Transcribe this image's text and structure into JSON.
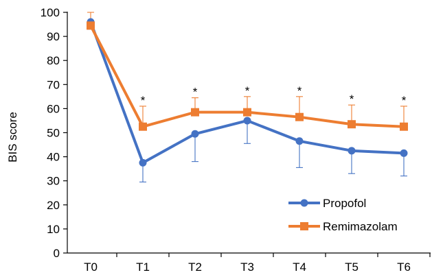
{
  "chart_data": {
    "type": "line",
    "title": "",
    "xlabel": "",
    "ylabel": "BIS score",
    "categories": [
      "T0",
      "T1",
      "T2",
      "T3",
      "T4",
      "T5",
      "T6"
    ],
    "ylim": [
      0,
      100
    ],
    "yticks": [
      0,
      10,
      20,
      30,
      40,
      50,
      60,
      70,
      80,
      90,
      100
    ],
    "grid": false,
    "legend_position": "bottom-right",
    "significance_marker": "*",
    "significant_points": [
      false,
      true,
      true,
      true,
      true,
      true,
      true
    ],
    "series": [
      {
        "name": "Propofol",
        "color": "#4472C4",
        "marker": "circle",
        "values": [
          96,
          37.5,
          49.5,
          55,
          46.5,
          42.5,
          41.5
        ],
        "error_minus": [
          3,
          8,
          11.5,
          9.5,
          11,
          9.5,
          9.5
        ]
      },
      {
        "name": "Remimazolam",
        "color": "#ED7D31",
        "marker": "square",
        "values": [
          94.5,
          52.5,
          58.5,
          58.5,
          56.5,
          53.5,
          52.5
        ],
        "error_plus": [
          5.5,
          8.5,
          6,
          6.5,
          8.5,
          8,
          8.5
        ]
      }
    ]
  }
}
